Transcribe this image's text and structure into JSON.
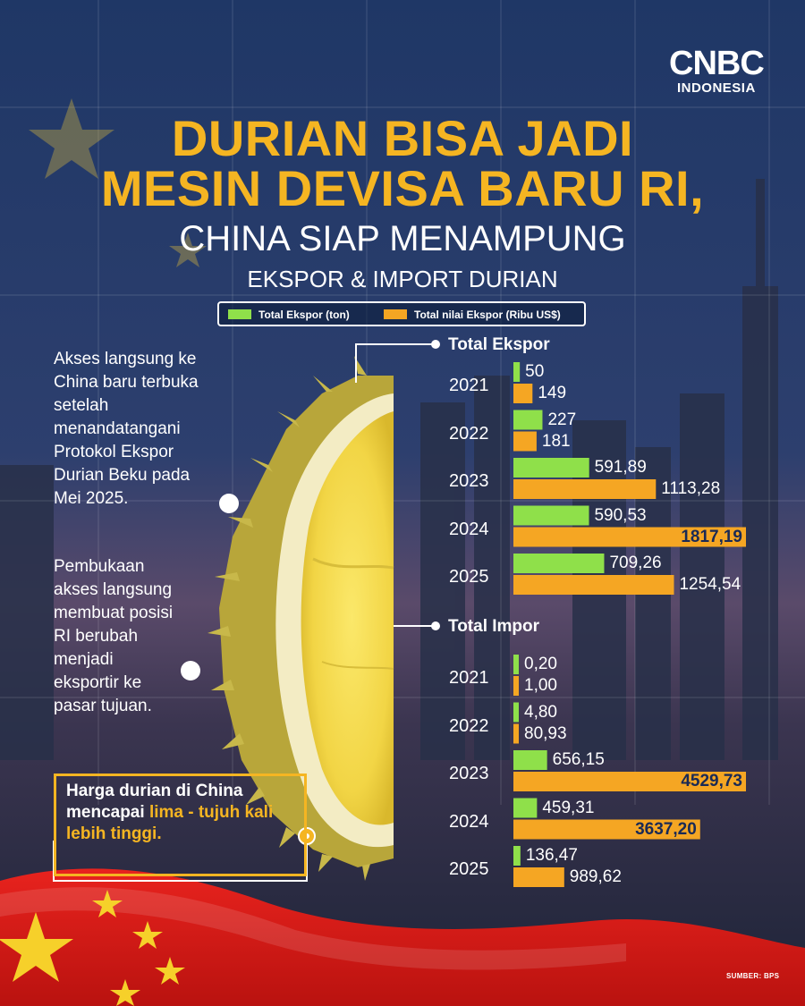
{
  "brand": {
    "logo_main": "CNBC",
    "logo_sub": "INDONESIA"
  },
  "title": {
    "line1": "DURIAN BISA JADI",
    "line2": "MESIN DEVISA BARU RI,"
  },
  "subtitle": "CHINA SIAP MENAMPUNG",
  "subtitle2": "EKSPOR & IMPORT DURIAN",
  "legend": [
    {
      "label": "Total Ekspor (ton)",
      "color": "#8fe04a"
    },
    {
      "label": "Total nilai Ekspor (Ribu US$)",
      "color": "#f5a623"
    }
  ],
  "paragraph1": "Akses langsung ke China baru terbuka setelah menandatangani Protokol Ekspor Durian Beku pada Mei 2025.",
  "paragraph2": "Pembukaan akses langsung membuat posisi RI berubah menjadi eksportir ke pasar tujuan.",
  "note": {
    "pre": "Harga durian di China mencapai ",
    "highlight": "lima - tujuh kali lebih tinggi."
  },
  "source": "SUMBER: BPS",
  "chart_data": [
    {
      "type": "bar",
      "title": "Total Ekspor",
      "categories": [
        "2021",
        "2022",
        "2023",
        "2024",
        "2025"
      ],
      "series": [
        {
          "name": "Total Ekspor (ton)",
          "values": [
            50,
            227,
            591.89,
            590.53,
            709.26
          ],
          "labels": [
            "50",
            "227",
            "591,89",
            "590,53",
            "709,26"
          ]
        },
        {
          "name": "Total nilai Ekspor (Ribu US$)",
          "values": [
            149,
            181,
            1113.28,
            1817.19,
            1254.54
          ],
          "labels": [
            "149",
            "181",
            "1113,28",
            "1817,19",
            "1254,54"
          ]
        }
      ]
    },
    {
      "type": "bar",
      "title": "Total Impor",
      "categories": [
        "2021",
        "2022",
        "2023",
        "2024",
        "2025"
      ],
      "series": [
        {
          "values": [
            0.2,
            4.8,
            656.15,
            459.31,
            136.47
          ],
          "labels": [
            "0,20",
            "4,80",
            "656,15",
            "459,31",
            "136,47"
          ]
        },
        {
          "values": [
            1.0,
            80.93,
            4529.73,
            3637.2,
            989.62
          ],
          "labels": [
            "1,00",
            "80,93",
            "4529,73",
            "3637,20",
            "989,62"
          ]
        }
      ]
    }
  ]
}
